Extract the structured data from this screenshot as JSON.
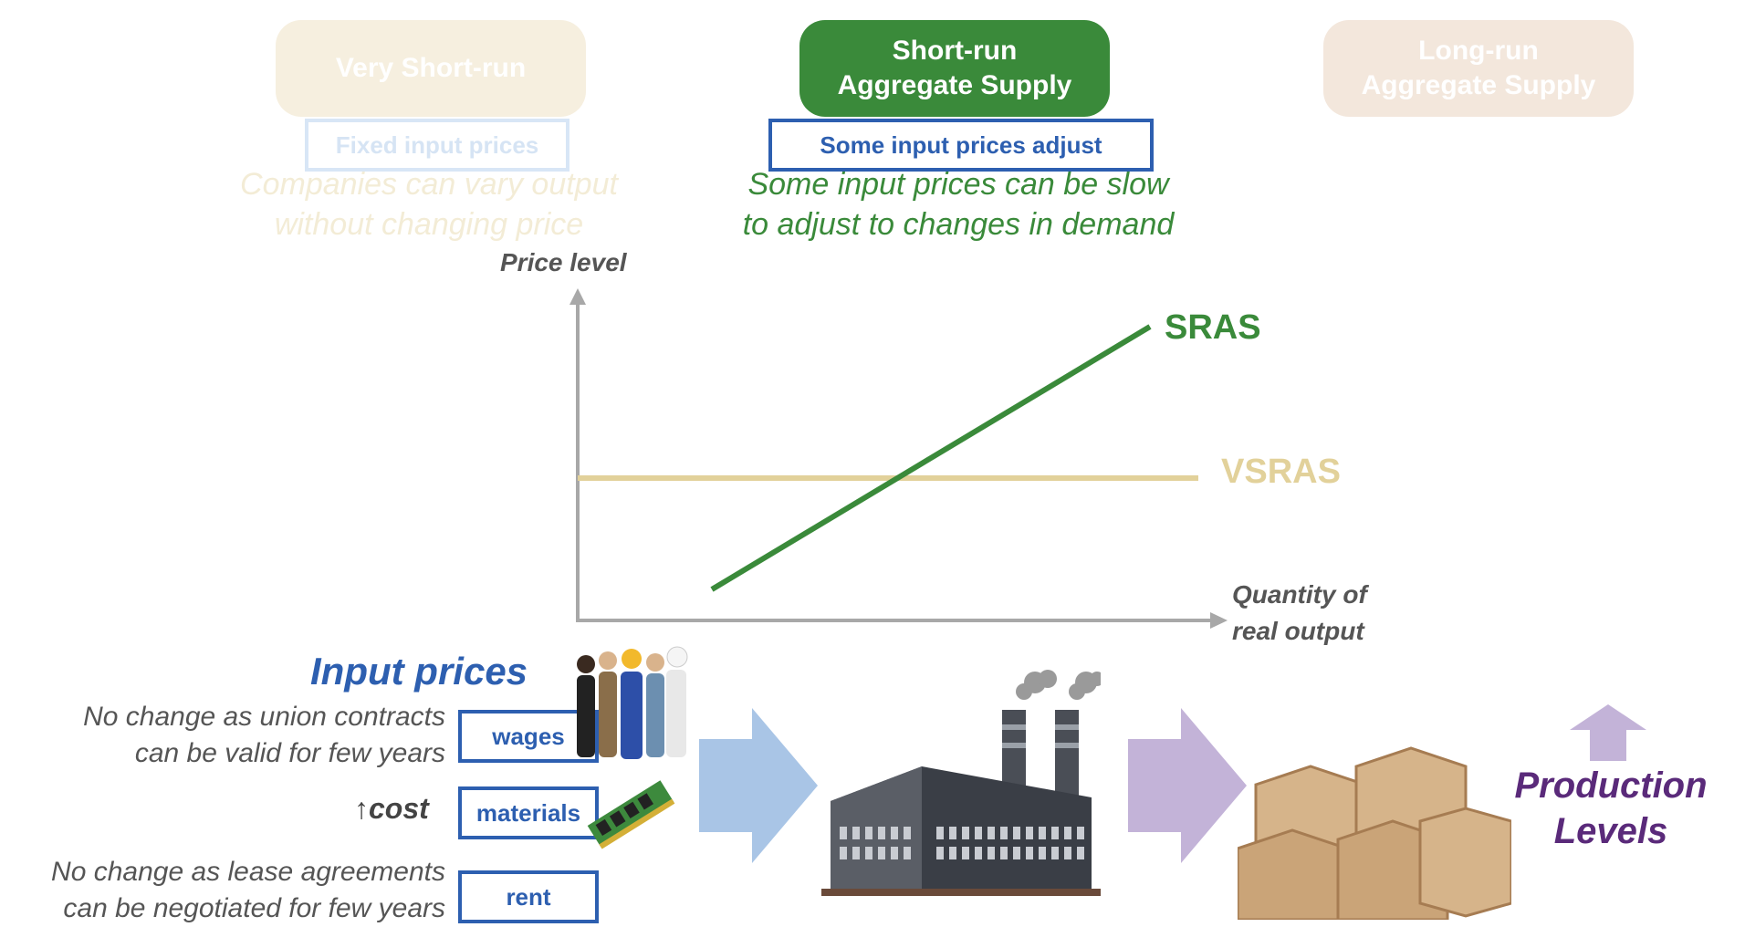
{
  "header": {
    "very_short_run": "Very Short-run",
    "short_run": "Short-run\nAggregate Supply",
    "long_run": "Long-run\nAggregate Supply"
  },
  "tags": {
    "fixed": "Fixed input prices",
    "some": "Some input prices adjust"
  },
  "notes": {
    "very_short": "Companies can vary output\nwithout changing price",
    "short": "Some input prices can be slow\nto adjust to changes in demand"
  },
  "chart": {
    "y_label": "Price level",
    "x_label": "Quantity of\nreal output",
    "sras_label": "SRAS",
    "vsras_label": "VSRAS"
  },
  "chart_data": {
    "type": "line",
    "title": "",
    "xlabel": "Quantity of real output",
    "ylabel": "Price level",
    "series": [
      {
        "name": "SRAS",
        "points": [
          [
            0.2,
            0.1
          ],
          [
            0.9,
            0.93
          ]
        ]
      },
      {
        "name": "VSRAS",
        "points": [
          [
            0.0,
            0.5
          ],
          [
            0.95,
            0.5
          ]
        ]
      }
    ]
  },
  "inputs": {
    "title": "Input prices",
    "wages": "wages",
    "materials": "materials",
    "rent": "rent",
    "wages_note": "No change as union contracts\ncan be valid for few years",
    "cost_arrow": "↑",
    "cost_label": "cost",
    "rent_note": "No change as lease agreements\ncan be negotiated for few years"
  },
  "output": {
    "production": "Production\nLevels"
  },
  "colors": {
    "green": "#3a8a3a",
    "tan": "#e2d19a",
    "blue": "#2d5fb0",
    "purple": "#5a2a7a",
    "arrow_blue": "#a9c5e6",
    "arrow_purple": "#c3b3d8"
  }
}
